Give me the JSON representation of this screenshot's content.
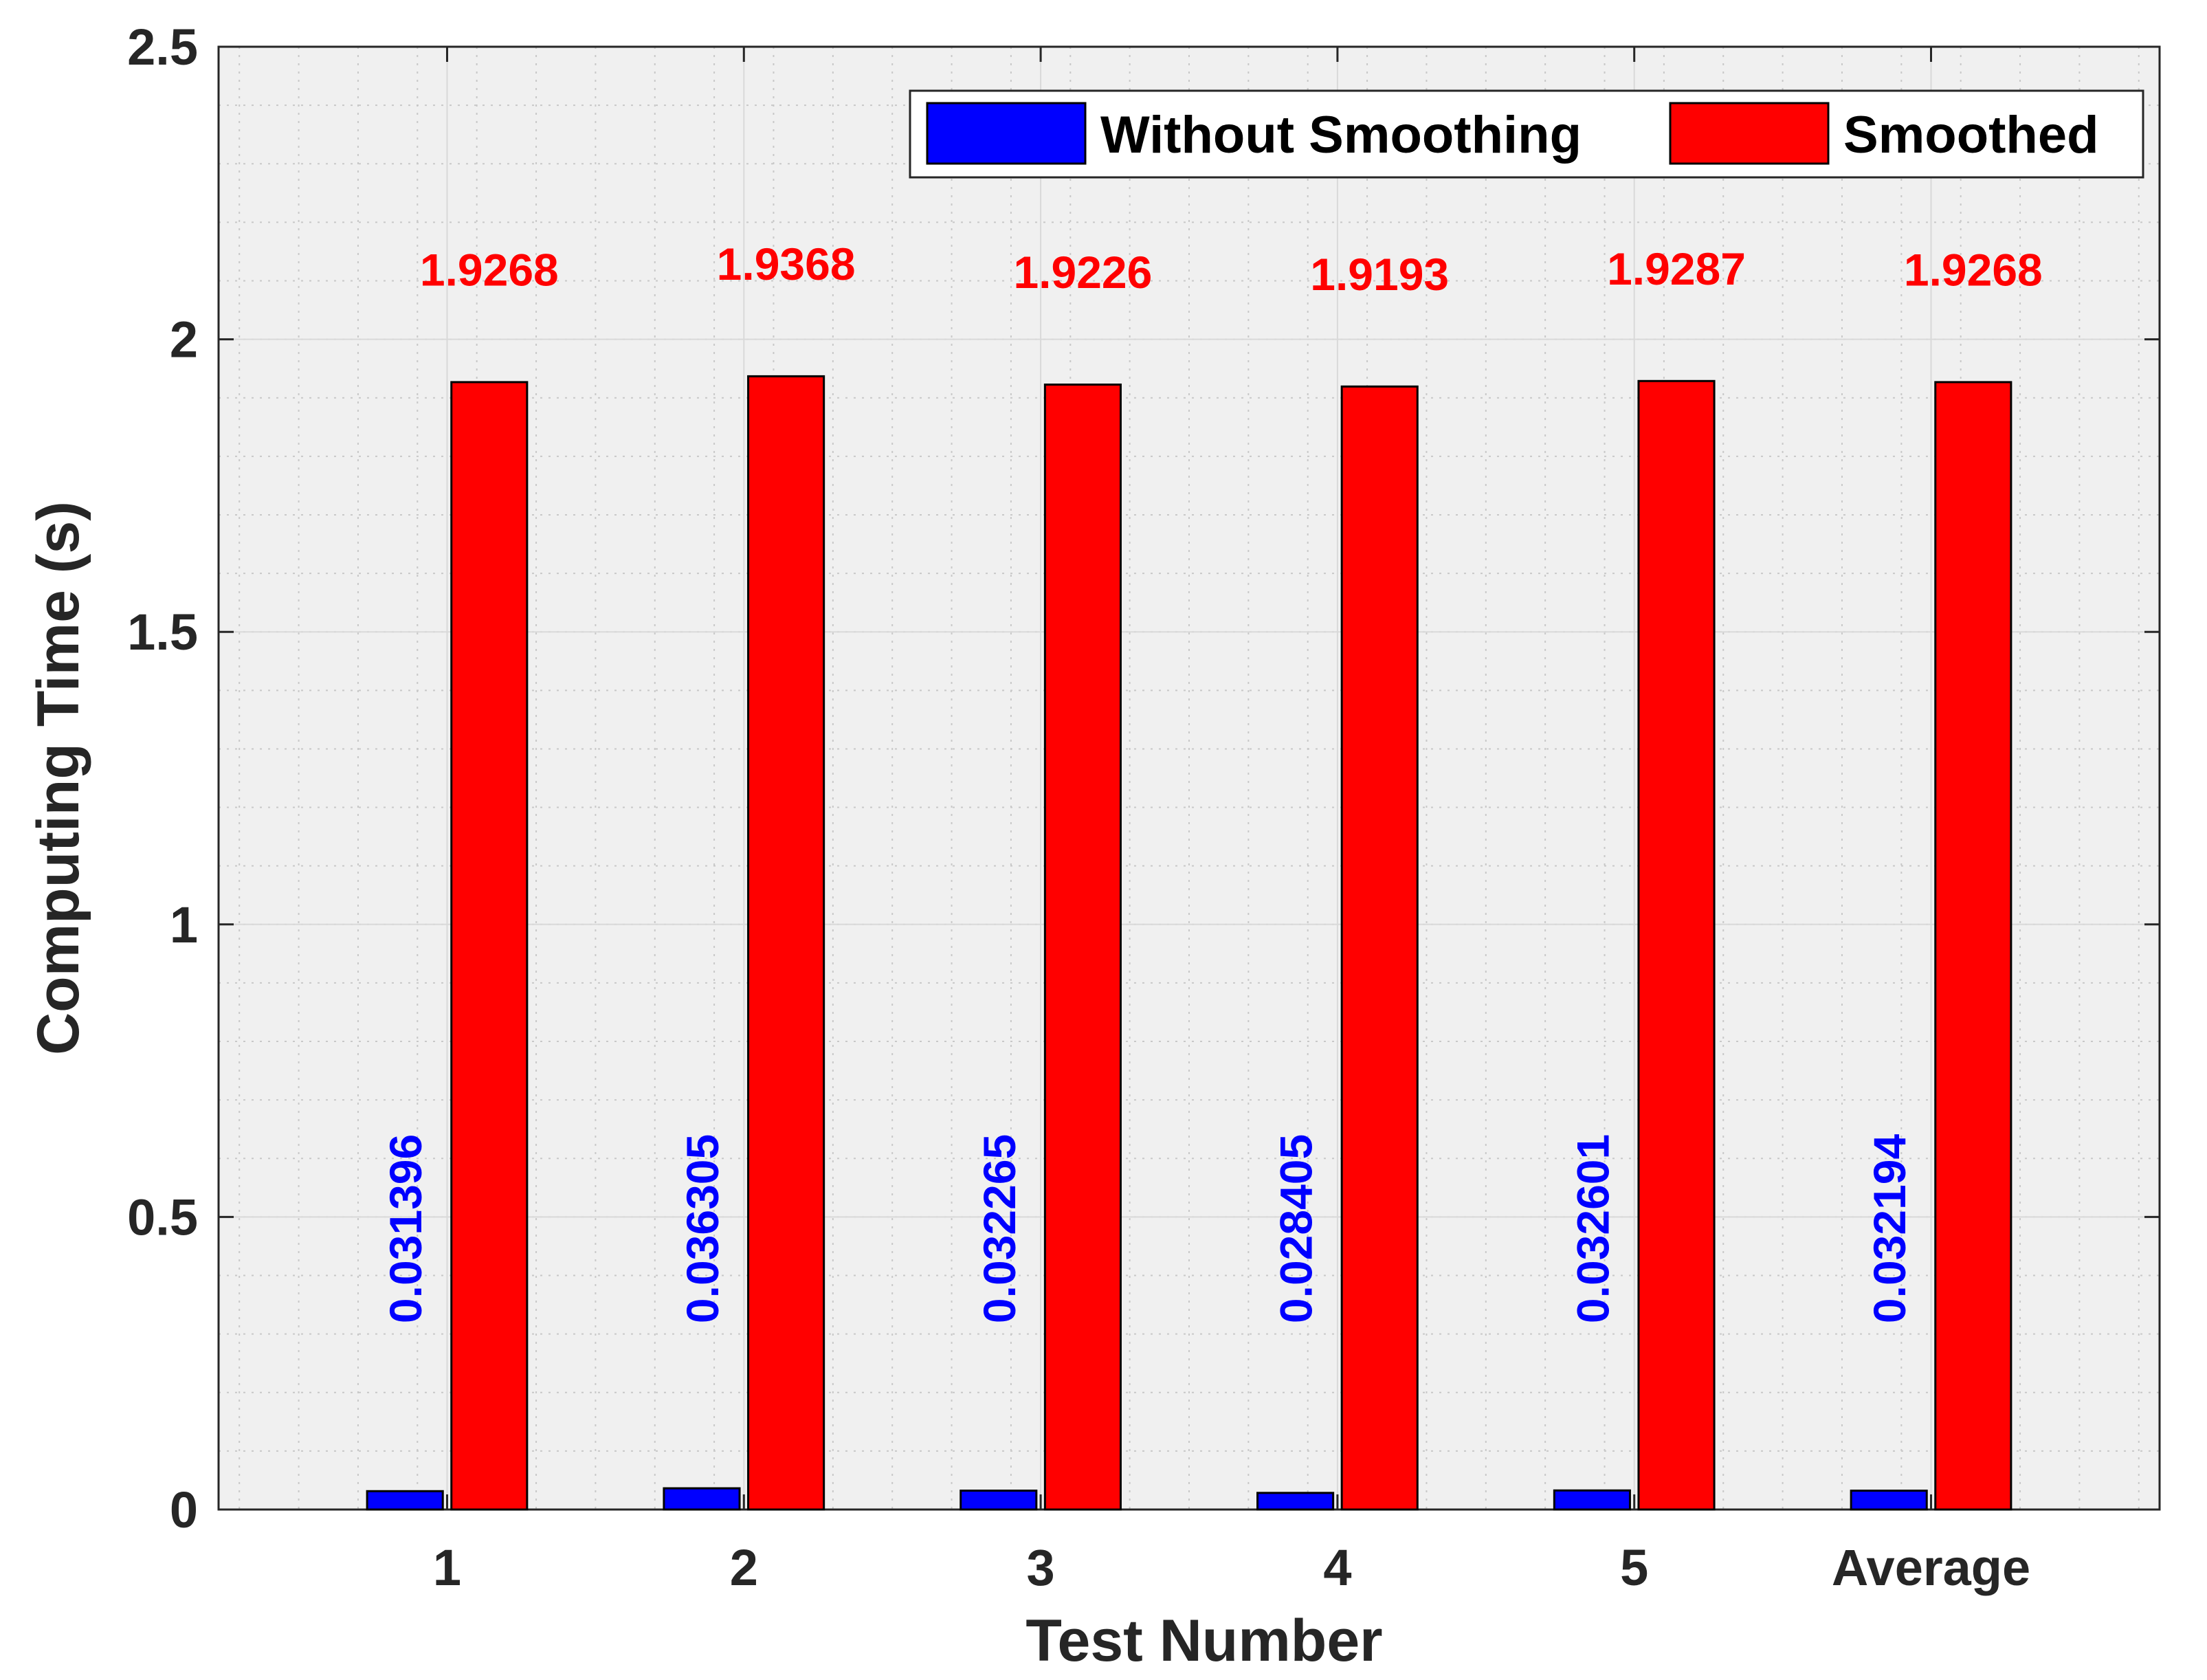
{
  "chart_data": {
    "type": "bar",
    "title": "",
    "xlabel": "Test Number",
    "ylabel": "Computing Time (s)",
    "ylim": [
      0,
      2.5
    ],
    "yticks": [
      "0",
      "0.5",
      "1",
      "1.5",
      "2",
      "2.5"
    ],
    "categories": [
      "1",
      "2",
      "3",
      "4",
      "5",
      "Average"
    ],
    "grid": true,
    "legend_position": "top-right",
    "series": [
      {
        "name": "Without Smoothing",
        "color": "#0000ff",
        "values": [
          0.031396,
          0.036305,
          0.032265,
          0.028405,
          0.032601,
          0.032194
        ],
        "labels": [
          "0.031396",
          "0.036305",
          "0.032265",
          "0.028405",
          "0.032601",
          "0.032194"
        ]
      },
      {
        "name": "Smoothed",
        "color": "#ff0000",
        "values": [
          1.9268,
          1.9368,
          1.9226,
          1.9193,
          1.9287,
          1.9268
        ],
        "labels": [
          "1.9268",
          "1.9368",
          "1.9226",
          "1.9193",
          "1.9287",
          "1.9268"
        ]
      }
    ]
  }
}
